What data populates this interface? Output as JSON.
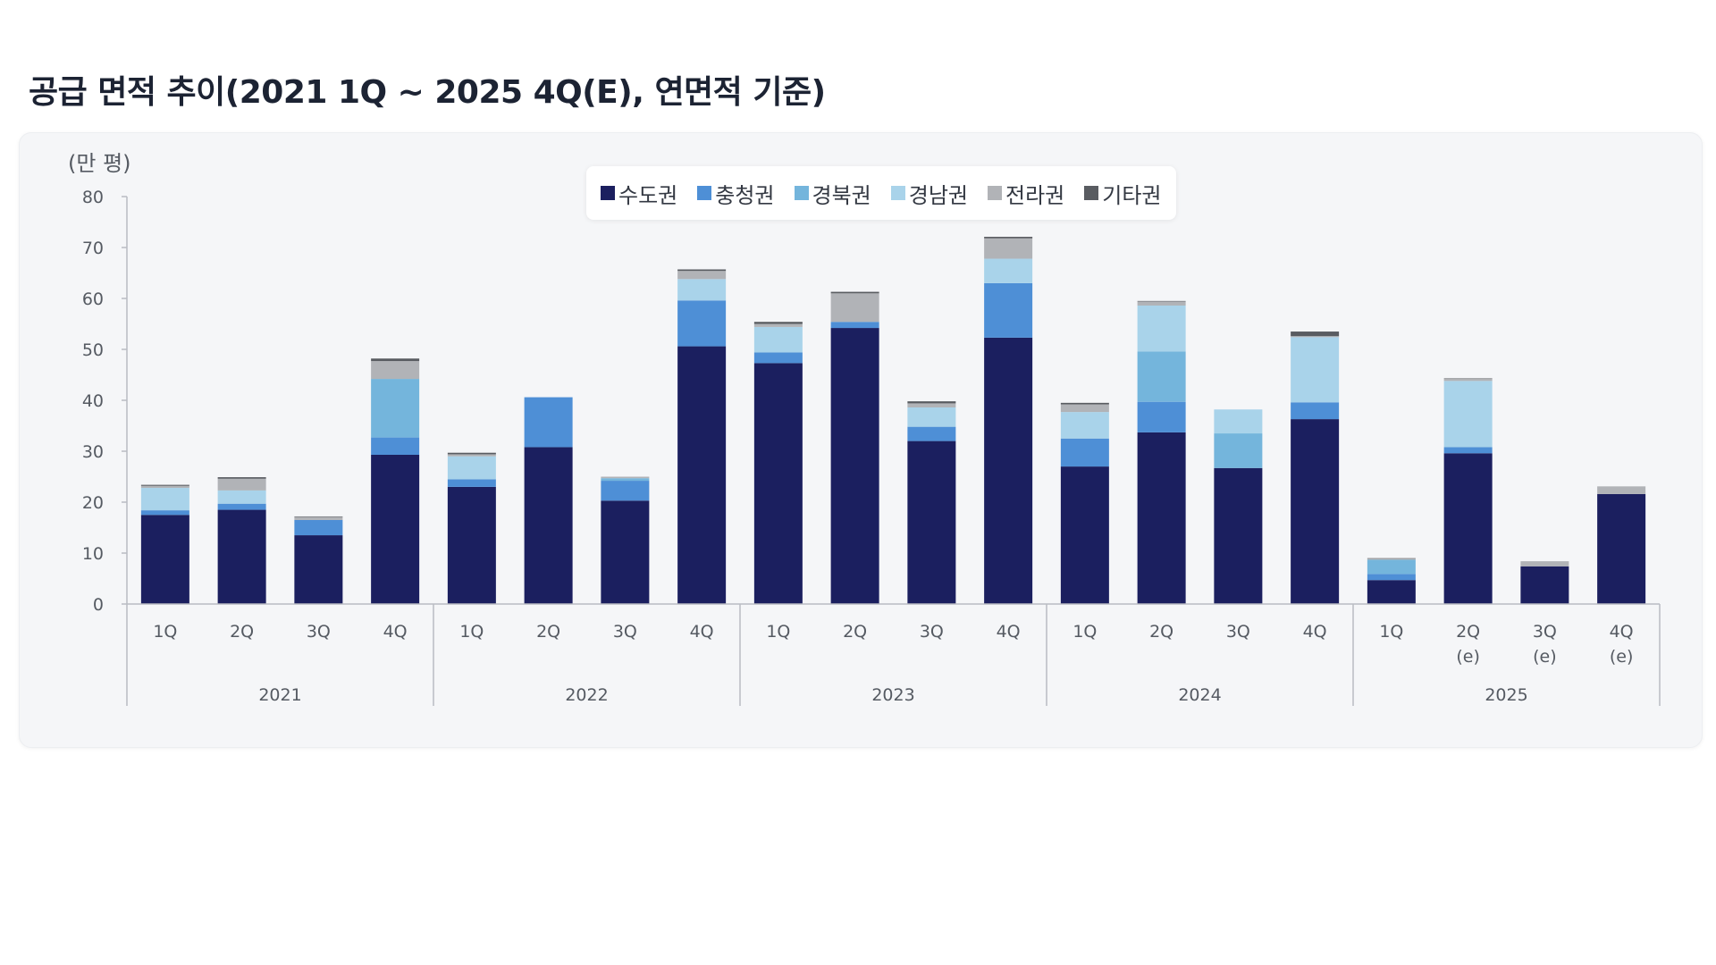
{
  "title": "공급 면적 추이(2021 1Q ~ 2025 4Q(E), 연면적 기준)",
  "chart_data": {
    "type": "bar",
    "stacked": true,
    "unit_label": "(만 평)",
    "ylim": [
      0,
      80
    ],
    "yticks": [
      0,
      10,
      20,
      30,
      40,
      50,
      60,
      70,
      80
    ],
    "legend_position": "top-center",
    "grid": false,
    "categories": [
      {
        "quarter": "1Q",
        "year": "2021"
      },
      {
        "quarter": "2Q",
        "year": "2021"
      },
      {
        "quarter": "3Q",
        "year": "2021"
      },
      {
        "quarter": "4Q",
        "year": "2021"
      },
      {
        "quarter": "1Q",
        "year": "2022"
      },
      {
        "quarter": "2Q",
        "year": "2022"
      },
      {
        "quarter": "3Q",
        "year": "2022"
      },
      {
        "quarter": "4Q",
        "year": "2022"
      },
      {
        "quarter": "1Q",
        "year": "2023"
      },
      {
        "quarter": "2Q",
        "year": "2023"
      },
      {
        "quarter": "3Q",
        "year": "2023"
      },
      {
        "quarter": "4Q",
        "year": "2023"
      },
      {
        "quarter": "1Q",
        "year": "2024"
      },
      {
        "quarter": "2Q",
        "year": "2024"
      },
      {
        "quarter": "3Q",
        "year": "2024"
      },
      {
        "quarter": "4Q",
        "year": "2024"
      },
      {
        "quarter": "1Q",
        "year": "2025"
      },
      {
        "quarter": "2Q",
        "sub": "(e)",
        "year": "2025"
      },
      {
        "quarter": "3Q",
        "sub": "(e)",
        "year": "2025"
      },
      {
        "quarter": "4Q",
        "sub": "(e)",
        "year": "2025"
      }
    ],
    "years": [
      "2021",
      "2022",
      "2023",
      "2024",
      "2025"
    ],
    "series": [
      {
        "name": "수도권",
        "color": "#1b1f5f",
        "values": [
          17.5,
          18.5,
          13.5,
          29.3,
          23.0,
          30.8,
          20.3,
          50.6,
          47.3,
          54.2,
          32.0,
          52.3,
          27.0,
          33.7,
          26.7,
          36.3,
          4.7,
          29.6,
          7.4,
          21.6
        ]
      },
      {
        "name": "충청권",
        "color": "#4e8fd6",
        "values": [
          0.9,
          1.2,
          3.0,
          3.4,
          1.5,
          9.8,
          3.9,
          9.0,
          2.1,
          1.2,
          2.8,
          10.7,
          5.5,
          6.0,
          0.0,
          3.3,
          1.2,
          1.2,
          0.0,
          0.0
        ]
      },
      {
        "name": "경북권",
        "color": "#74b5dc",
        "values": [
          0.0,
          0.0,
          0.0,
          11.5,
          0.0,
          0.0,
          0.5,
          0.0,
          0.0,
          0.0,
          0.0,
          0.0,
          0.0,
          9.9,
          6.8,
          0.0,
          2.8,
          0.0,
          0.0,
          0.0
        ]
      },
      {
        "name": "경남권",
        "color": "#a9d3ea",
        "values": [
          4.4,
          2.6,
          0.0,
          0.0,
          4.5,
          0.0,
          0.0,
          4.2,
          5.0,
          0.0,
          3.8,
          4.8,
          5.2,
          9.0,
          4.7,
          12.8,
          0.0,
          13.0,
          0.0,
          0.0
        ]
      },
      {
        "name": "전라권",
        "color": "#b1b3b7",
        "values": [
          0.4,
          2.3,
          0.6,
          3.5,
          0.4,
          0.0,
          0.3,
          1.6,
          0.6,
          5.6,
          0.8,
          4.0,
          1.5,
          0.8,
          0.0,
          0.2,
          0.2,
          0.4,
          1.0,
          1.5
        ]
      },
      {
        "name": "기타권",
        "color": "#595c61",
        "values": [
          0.2,
          0.3,
          0.1,
          0.5,
          0.3,
          0.0,
          0.0,
          0.3,
          0.4,
          0.3,
          0.4,
          0.3,
          0.3,
          0.1,
          0.0,
          0.9,
          0.1,
          0.1,
          0.0,
          0.0
        ]
      }
    ]
  }
}
